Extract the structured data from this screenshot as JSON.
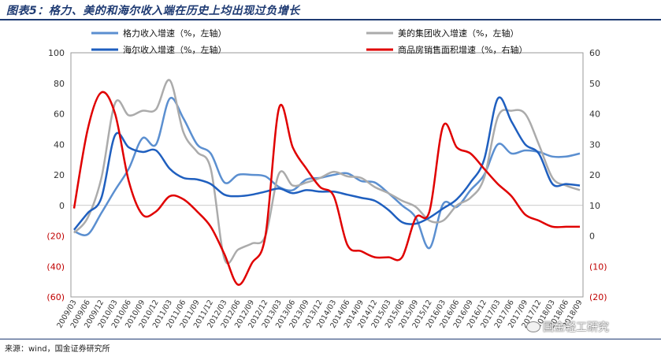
{
  "title": "图表5：格力、美的和海尔收入端在历史上均出现过负增长",
  "source": "来源：wind，国金证券研究所",
  "watermark": "国金轻工研究",
  "chart_data": {
    "type": "line",
    "title": "图表5：格力、美的和海尔收入端在历史上均出现过负增长",
    "x_labels": [
      "2009/03",
      "2009/06",
      "2009/12",
      "2010/03",
      "2010/06",
      "2010/09",
      "2010/12",
      "2011/03",
      "2011/06",
      "2011/09",
      "2011/12",
      "2012/03",
      "2012/06",
      "2012/09",
      "2012/12",
      "2013/03",
      "2013/06",
      "2013/09",
      "2013/12",
      "2014/03",
      "2014/06",
      "2014/09",
      "2014/12",
      "2015/03",
      "2015/06",
      "2015/09",
      "2015/12",
      "2016/03",
      "2016/06",
      "2016/09",
      "2016/12",
      "2017/03",
      "2017/06",
      "2017/09",
      "2017/12",
      "2018/03",
      "2018/06",
      "2018/09"
    ],
    "left_axis": {
      "ylim": [
        -60,
        100
      ],
      "ticks": [
        -60,
        -40,
        -20,
        0,
        20,
        40,
        60,
        80,
        100
      ],
      "tick_labels": [
        "(60)",
        "(40)",
        "(20)",
        "0",
        "20",
        "40",
        "60",
        "80",
        "100"
      ]
    },
    "right_axis": {
      "ylim": [
        -20,
        60
      ],
      "ticks": [
        -20,
        -10,
        0,
        10,
        20,
        30,
        40,
        50,
        60
      ],
      "tick_labels": [
        "(20)",
        "(10)",
        "0",
        "10",
        "20",
        "30",
        "40",
        "50",
        "60"
      ]
    },
    "series": [
      {
        "name": "格力收入增速（%，左轴）",
        "axis": "left",
        "color": "#5b8fd0",
        "width": 2.5,
        "values": [
          -17,
          -19,
          -5,
          10,
          24,
          44,
          40,
          70,
          57,
          40,
          34,
          15,
          20,
          20,
          19,
          12,
          10,
          17,
          18,
          20,
          21,
          16,
          15,
          8,
          0,
          -8,
          -28,
          1,
          -1,
          10,
          20,
          40,
          34,
          36,
          35,
          32,
          32,
          34
        ]
      },
      {
        "name": "美的集团收入增速（%，左轴）",
        "axis": "left",
        "color": "#ababab",
        "width": 2.5,
        "values": [
          -18,
          -8,
          18,
          67,
          59,
          62,
          63,
          82,
          48,
          35,
          24,
          -35,
          -29,
          -25,
          -20,
          21,
          13,
          15,
          18,
          22,
          19,
          18,
          12,
          8,
          3,
          -1,
          -10,
          -10,
          0,
          5,
          18,
          58,
          62,
          60,
          40,
          18,
          13,
          10
        ]
      },
      {
        "name": "海尔收入增速（%，左轴）",
        "axis": "left",
        "color": "#1f5fbf",
        "width": 2.5,
        "values": [
          -16,
          -5,
          5,
          46,
          38,
          35,
          36,
          24,
          18,
          17,
          14,
          7,
          6,
          7,
          9,
          11,
          8,
          10,
          9,
          9,
          7,
          5,
          3,
          -3,
          -11,
          -12,
          -8,
          -2,
          4,
          15,
          30,
          70,
          55,
          40,
          34,
          14,
          14,
          13
        ]
      },
      {
        "name": "商品房销售面积增速（%，右轴）",
        "axis": "right",
        "color": "#e00000",
        "width": 2.5,
        "values": [
          9,
          35,
          47,
          40,
          18,
          7,
          8,
          13,
          12,
          8,
          3,
          -6,
          -16,
          -9,
          0,
          42,
          29,
          22,
          16,
          13,
          -3,
          -5,
          -7,
          -7,
          -7,
          6,
          8,
          36,
          29,
          27,
          22,
          17,
          13,
          7,
          5,
          3,
          3,
          3
        ]
      }
    ]
  }
}
